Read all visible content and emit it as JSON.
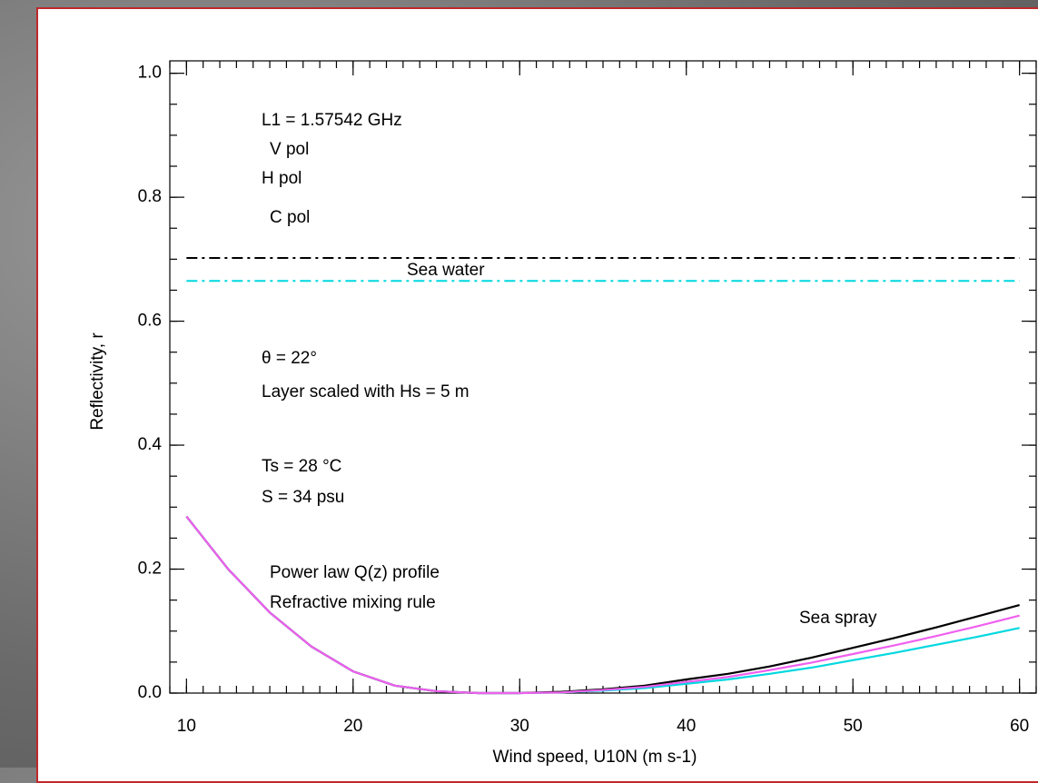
{
  "chart_data": {
    "type": "line",
    "x_label": "Wind speed, U10N (m s-1)",
    "y_label": "Reflectivity, r",
    "xlim": [
      9,
      61
    ],
    "ylim": [
      0,
      1.02
    ],
    "xticks": [
      10,
      20,
      30,
      40,
      50,
      60
    ],
    "yticks": [
      {
        "value": 0,
        "label": "0.0"
      },
      0.2,
      0.4,
      0.6,
      0.8,
      {
        "value": 1,
        "label": "1.0"
      }
    ],
    "minor_ticks": {
      "x": 1,
      "y": 0.05
    },
    "x": [
      10,
      12.5,
      15,
      17.5,
      20,
      22.5,
      25,
      27.5,
      30,
      32.5,
      35,
      37.5,
      40,
      42.5,
      45,
      47.5,
      50,
      52.5,
      55,
      57.5,
      60
    ],
    "series": [
      {
        "name": "V pol",
        "color": "#00d8e0",
        "values": [
          0.285,
          0.2,
          0.13,
          0.075,
          0.035,
          0.012,
          0.003,
          0.0,
          0.0,
          0.001,
          0.004,
          0.008,
          0.015,
          0.022,
          0.031,
          0.041,
          0.053,
          0.065,
          0.078,
          0.091,
          0.105
        ]
      },
      {
        "name": "H pol",
        "color": "#000000",
        "values": [
          0.285,
          0.2,
          0.13,
          0.075,
          0.035,
          0.012,
          0.003,
          0.0,
          0.0,
          0.002,
          0.006,
          0.012,
          0.022,
          0.031,
          0.043,
          0.057,
          0.073,
          0.089,
          0.106,
          0.124,
          0.142
        ]
      },
      {
        "name": "C pol",
        "color": "#f060f0",
        "values": [
          0.285,
          0.2,
          0.13,
          0.075,
          0.035,
          0.012,
          0.003,
          0.0,
          0.0,
          0.001,
          0.005,
          0.01,
          0.018,
          0.026,
          0.037,
          0.049,
          0.063,
          0.077,
          0.092,
          0.108,
          0.125
        ]
      }
    ],
    "sea_water": {
      "label": "Sea water",
      "lines": [
        {
          "value": 0.702,
          "color": "#000000"
        },
        {
          "value": 0.665,
          "color": "#00d8e0"
        }
      ]
    },
    "annotations": [
      "L1 = 1.57542 GHz",
      "θ = 22°",
      "Layer scaled with Hs = 5 m",
      "Ts = 28 °C",
      "S = 34 psu",
      "Power law Q(z) profile",
      "Refractive mixing rule",
      "Sea spray"
    ]
  }
}
